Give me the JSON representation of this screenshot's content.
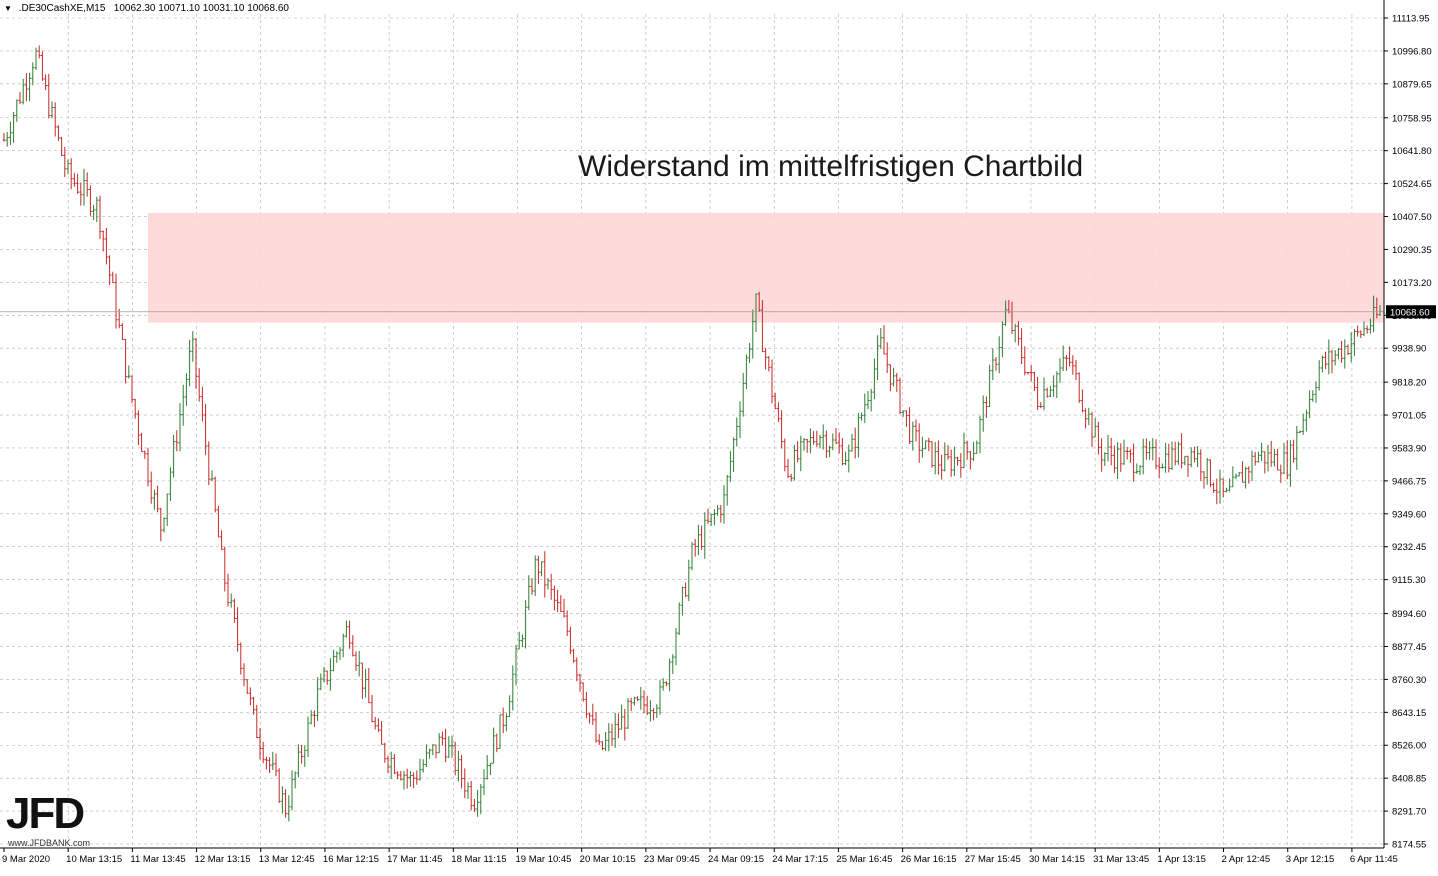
{
  "header": {
    "symbol": ".DE30CashXE,M15",
    "ohlc": "10062.30 10071.10 10031.10 10068.60"
  },
  "annotation": "Widerstand im mittelfristigen Chartbild",
  "logo": {
    "text": "JFD",
    "sub": "www.JFDBANK.com"
  },
  "colors": {
    "up_candle": "#2e7d32",
    "down_candle": "#c62828",
    "grid": "#b0b0b0",
    "zone_fill": "#ffd6d6",
    "price_tag": "#000000"
  },
  "chart_data": {
    "type": "candlestick",
    "instrument": ".DE30CashXE",
    "timeframe": "M15",
    "current_price": "10068.60",
    "y_ticks": [
      "11113.95",
      "10996.80",
      "10879.65",
      "10758.95",
      "10641.80",
      "10524.65",
      "10407.50",
      "10290.35",
      "10173.20",
      "10056.05",
      "9938.90",
      "9818.20",
      "9701.05",
      "9583.90",
      "9466.75",
      "9349.60",
      "9232.45",
      "9115.30",
      "8994.60",
      "8877.45",
      "8760.30",
      "8643.15",
      "8526.00",
      "8408.85",
      "8291.70",
      "8174.55"
    ],
    "x_ticks": [
      "9 Mar 2020",
      "10 Mar 13:15",
      "11 Mar 13:45",
      "12 Mar 13:15",
      "13 Mar 12:45",
      "16 Mar 12:15",
      "17 Mar 11:45",
      "18 Mar 11:15",
      "19 Mar 10:45",
      "20 Mar 10:15",
      "23 Mar 09:45",
      "24 Mar 09:15",
      "24 Mar 17:15",
      "25 Mar 16:45",
      "26 Mar 16:15",
      "27 Mar 15:45",
      "30 Mar 14:15",
      "31 Mar 13:45",
      "1 Apr 13:15",
      "2 Apr 12:45",
      "3 Apr 12:15",
      "6 Apr 11:45"
    ],
    "ylim": [
      8174.55,
      11113.95
    ],
    "resistance_zone": {
      "low": 10030,
      "high": 10420
    },
    "approx_path": [
      {
        "x": 0,
        "close": 10680
      },
      {
        "x": 1,
        "close": 10990
      },
      {
        "x": 2,
        "close": 10560
      },
      {
        "x": 3,
        "close": 10440
      },
      {
        "x": 4,
        "close": 9800
      },
      {
        "x": 5,
        "close": 9300
      },
      {
        "x": 6,
        "close": 9950
      },
      {
        "x": 7,
        "close": 9140
      },
      {
        "x": 8,
        "close": 8600
      },
      {
        "x": 9,
        "close": 8300
      },
      {
        "x": 10,
        "close": 8700
      },
      {
        "x": 11,
        "close": 8950
      },
      {
        "x": 12,
        "close": 8520
      },
      {
        "x": 13,
        "close": 8400
      },
      {
        "x": 14,
        "close": 8550
      },
      {
        "x": 15,
        "close": 8330
      },
      {
        "x": 16,
        "close": 8640
      },
      {
        "x": 17,
        "close": 9180
      },
      {
        "x": 18,
        "close": 8930
      },
      {
        "x": 19,
        "close": 8500
      },
      {
        "x": 20,
        "close": 8650
      },
      {
        "x": 21,
        "close": 8700
      },
      {
        "x": 22,
        "close": 9220
      },
      {
        "x": 23,
        "close": 9400
      },
      {
        "x": 24,
        "close": 10100
      },
      {
        "x": 25,
        "close": 9500
      },
      {
        "x": 26,
        "close": 9640
      },
      {
        "x": 27,
        "close": 9550
      },
      {
        "x": 28,
        "close": 9950
      },
      {
        "x": 29,
        "close": 9620
      },
      {
        "x": 30,
        "close": 9520
      },
      {
        "x": 31,
        "close": 9590
      },
      {
        "x": 32,
        "close": 10070
      },
      {
        "x": 33,
        "close": 9760
      },
      {
        "x": 34,
        "close": 9900
      },
      {
        "x": 35,
        "close": 9570
      },
      {
        "x": 36,
        "close": 9540
      },
      {
        "x": 37,
        "close": 9550
      },
      {
        "x": 38,
        "close": 9570
      },
      {
        "x": 39,
        "close": 9400
      },
      {
        "x": 40,
        "close": 9560
      },
      {
        "x": 41,
        "close": 9530
      },
      {
        "x": 42,
        "close": 9870
      },
      {
        "x": 43,
        "close": 9960
      },
      {
        "x": 44,
        "close": 10068.6
      }
    ]
  }
}
